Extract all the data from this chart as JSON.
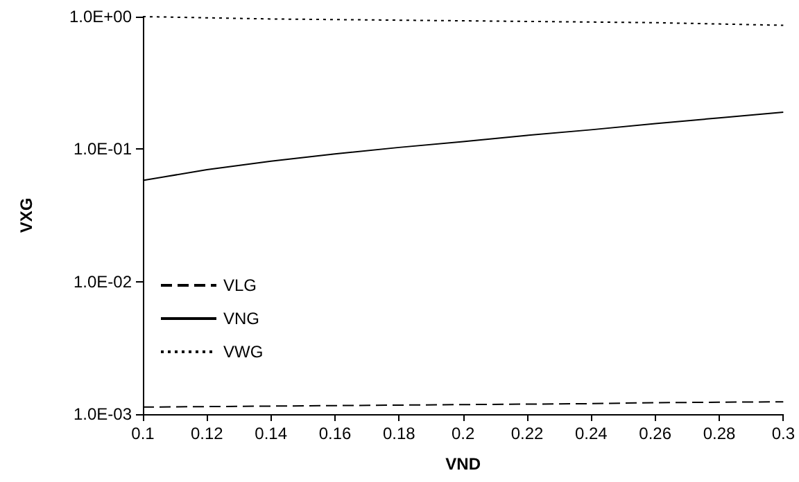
{
  "chart_data": {
    "type": "line",
    "xlabel": "VND",
    "ylabel": "VXG",
    "log": "y",
    "grid": false,
    "legend": "left",
    "marker": "none",
    "xlim": [
      0.1,
      0.3
    ],
    "xticks": [
      0.1,
      0.12,
      0.14,
      0.16,
      0.18,
      0.2,
      0.22,
      0.24,
      0.26,
      0.28,
      0.3
    ],
    "ylim": [
      0.001,
      1
    ],
    "yticks": [
      {
        "value": 0.001,
        "label": "1.0E-03"
      },
      {
        "value": 0.01,
        "label": "1.0E-02"
      },
      {
        "value": 0.1,
        "label": "1.0E-01"
      },
      {
        "value": 1,
        "label": "1.0E+00"
      }
    ],
    "x": [
      0.1,
      0.12,
      0.14,
      0.16,
      0.18,
      0.2,
      0.22,
      0.24,
      0.26,
      0.28,
      0.3
    ],
    "series": [
      {
        "name": "VLG",
        "color": "#000000",
        "line_style": "dashed",
        "values": [
          0.00113,
          0.00114,
          0.00115,
          0.00116,
          0.00117,
          0.00118,
          0.00119,
          0.0012,
          0.00122,
          0.00123,
          0.00124
        ]
      },
      {
        "name": "VNG",
        "color": "#000000",
        "line_style": "solid",
        "values": [
          0.058,
          0.07,
          0.081,
          0.092,
          0.103,
          0.114,
          0.127,
          0.14,
          0.156,
          0.172,
          0.19
        ]
      },
      {
        "name": "VWG",
        "color": "#000000",
        "line_style": "dotted",
        "values": [
          1,
          0.98,
          0.96,
          0.95,
          0.94,
          0.93,
          0.92,
          0.91,
          0.9,
          0.88,
          0.86
        ]
      }
    ]
  }
}
